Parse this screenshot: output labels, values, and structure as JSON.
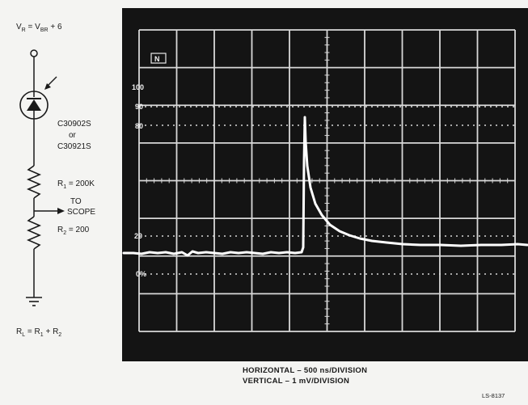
{
  "circuit": {
    "bias_label": "V",
    "bias_sub1": "R",
    "bias_mid": " = V",
    "bias_sub2": "BR",
    "bias_tail": " + 6",
    "device_part1": "C30902S",
    "device_or": "or",
    "device_part2": "C30921S",
    "r1_main": "R",
    "r1_sub": "1",
    "r1_value": " = 200K",
    "scope_label_1": "TO",
    "scope_label_2": "SCOPE",
    "r2_main": "R",
    "r2_sub": "2",
    "r2_value": " = 200",
    "rl_R": "R",
    "rl_Lsub": "L",
    "rl_eq": " = R",
    "rl_1": "1",
    "rl_plus": " + R",
    "rl_2": "2"
  },
  "scope": {
    "label_100": "100",
    "label_90": "90",
    "label_80": "80",
    "label_20": "20",
    "label_0": "0%",
    "badge": "N"
  },
  "caption": {
    "line1": "HORIZONTAL – 500 ns/DIVISION",
    "line2": "VERTICAL – 1 mV/DIVISION"
  },
  "figure_id": "LS-8137",
  "colors": {
    "scope_bg": "#141414",
    "grid": "#d8d8d8",
    "trace": "#ffffff",
    "page": "#f4f4f2"
  }
}
